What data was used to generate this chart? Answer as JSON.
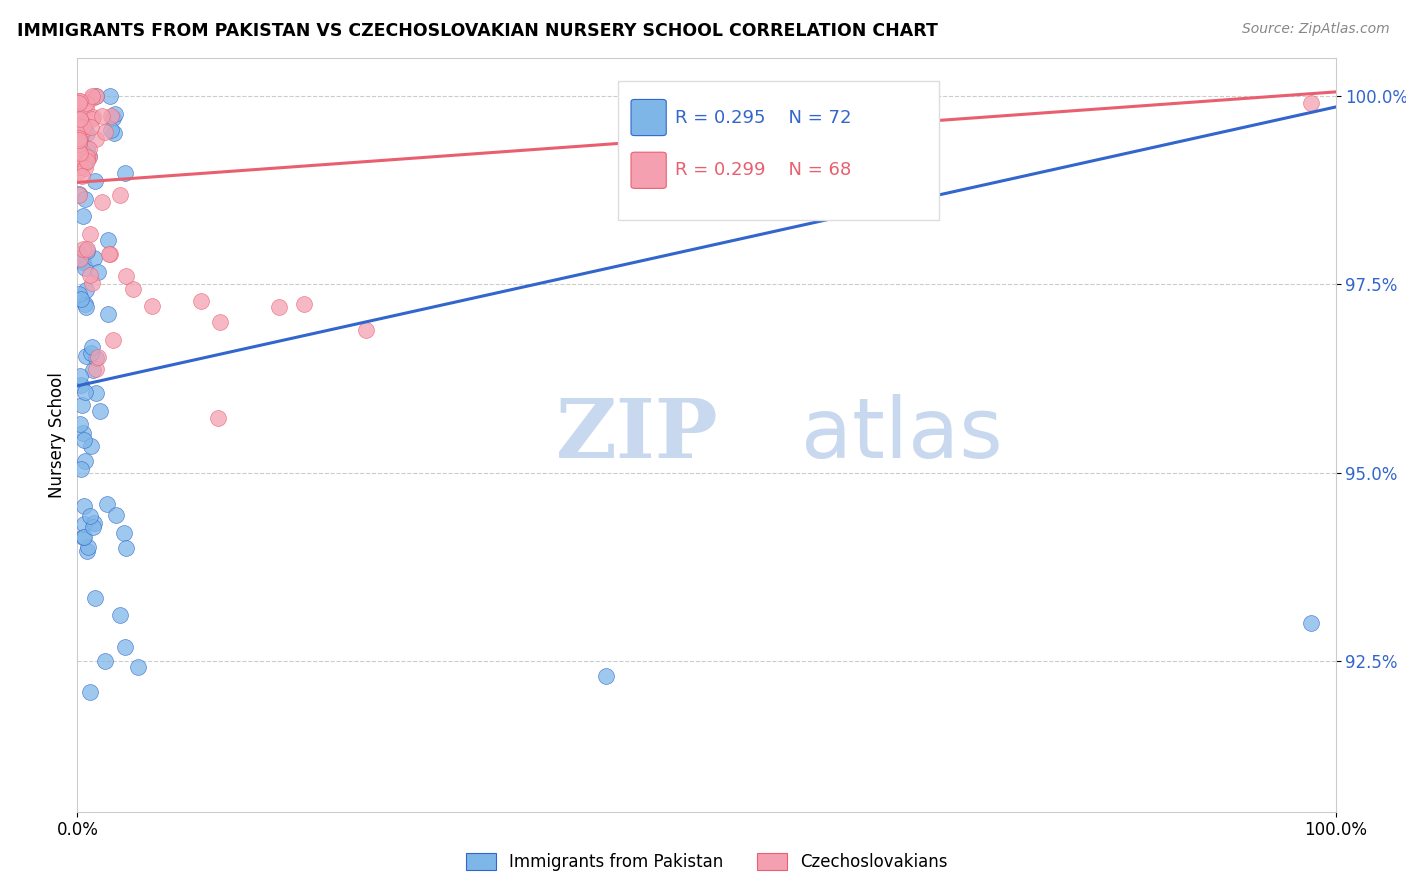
{
  "title": "IMMIGRANTS FROM PAKISTAN VS CZECHOSLOVAKIAN NURSERY SCHOOL CORRELATION CHART",
  "source": "Source: ZipAtlas.com",
  "ylabel": "Nursery School",
  "y_ticks": [
    1.0,
    0.975,
    0.95,
    0.925
  ],
  "y_tick_labels": [
    "100.0%",
    "97.5%",
    "95.0%",
    "92.5%"
  ],
  "x_lim": [
    0.0,
    1.0
  ],
  "y_lim": [
    0.905,
    1.005
  ],
  "legend_blue_label": "Immigrants from Pakistan",
  "legend_pink_label": "Czechoslovakians",
  "legend_R_blue": "R = 0.295",
  "legend_N_blue": "N = 72",
  "legend_R_pink": "R = 0.299",
  "legend_N_pink": "N = 68",
  "blue_color": "#7EB6E8",
  "pink_color": "#F4A0B0",
  "blue_line_color": "#3366CC",
  "pink_line_color": "#E86070",
  "watermark_zip": "ZIP",
  "watermark_atlas": "atlas",
  "watermark_color_zip": "#C8D8EE",
  "watermark_color_atlas": "#C8D8EE",
  "blue_trendline_x": [
    0.0,
    1.0
  ],
  "blue_trendline_y": [
    0.9615,
    0.9985
  ],
  "pink_trendline_x": [
    0.0,
    1.0
  ],
  "pink_trendline_y": [
    0.9885,
    1.0005
  ]
}
